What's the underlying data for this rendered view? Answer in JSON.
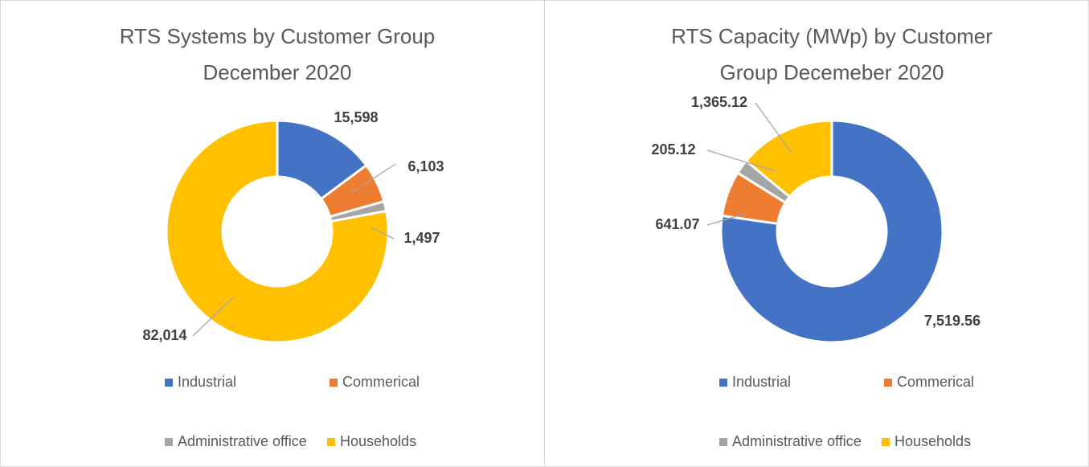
{
  "chart_data": [
    {
      "type": "donut",
      "title": [
        "RTS Systems by Customer Group",
        "December 2020"
      ],
      "categories": [
        "Industrial",
        "Commerical",
        "Administrative office",
        "Households"
      ],
      "values": [
        15598,
        6103,
        1497,
        82014
      ],
      "value_labels": [
        "15,598",
        "6,103",
        "1,497",
        "82,014"
      ],
      "colors": [
        "#4472c4",
        "#ed7d31",
        "#a5a5a5",
        "#ffc000"
      ],
      "legend": "bottom"
    },
    {
      "type": "donut",
      "title": [
        "RTS Capacity (MWp) by Customer",
        "Group Decemeber 2020"
      ],
      "categories": [
        "Industrial",
        "Commerical",
        "Administrative office",
        "Households"
      ],
      "values": [
        7519.56,
        641.07,
        205.12,
        1365.12
      ],
      "value_labels": [
        "7,519.56",
        "641.07",
        "205.12",
        "1,365.12"
      ],
      "colors": [
        "#4472c4",
        "#ed7d31",
        "#a5a5a5",
        "#ffc000"
      ],
      "legend": "bottom"
    }
  ]
}
